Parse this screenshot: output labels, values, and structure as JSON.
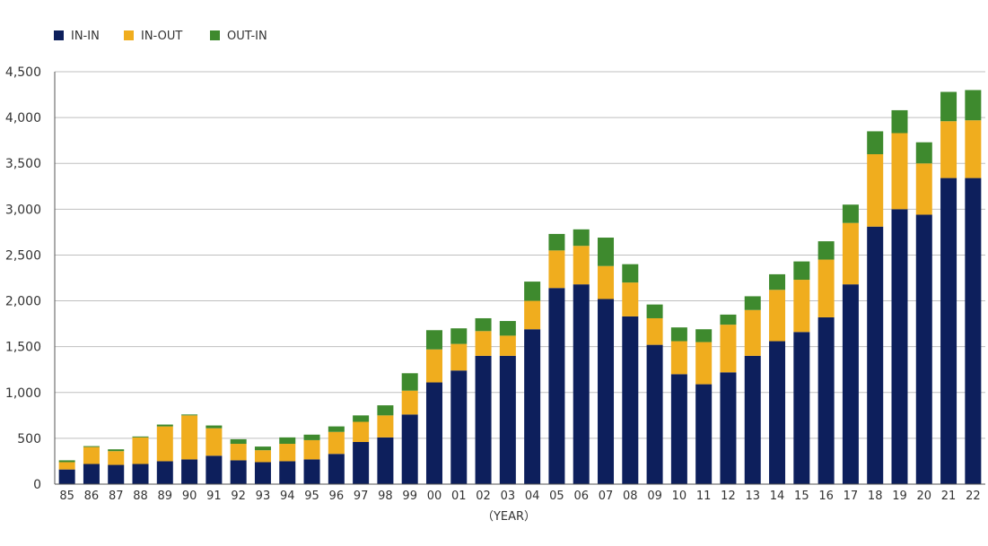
{
  "chart_data": {
    "type": "bar",
    "stacked": true,
    "categories": [
      "85",
      "86",
      "87",
      "88",
      "89",
      "90",
      "91",
      "92",
      "93",
      "94",
      "95",
      "96",
      "97",
      "98",
      "99",
      "00",
      "01",
      "02",
      "03",
      "04",
      "05",
      "06",
      "07",
      "08",
      "09",
      "10",
      "11",
      "12",
      "13",
      "14",
      "15",
      "16",
      "17",
      "18",
      "19",
      "20",
      "21",
      "22"
    ],
    "series": [
      {
        "name": "IN-IN",
        "color": "#0d1f5c",
        "values": [
          160,
          220,
          210,
          220,
          250,
          270,
          310,
          260,
          240,
          250,
          270,
          330,
          460,
          510,
          760,
          1110,
          1240,
          1400,
          1400,
          1690,
          2140,
          2180,
          2020,
          1830,
          1520,
          1200,
          1090,
          1220,
          1400,
          1560,
          1660,
          1820,
          2180,
          2810,
          3000,
          2940,
          3340,
          3340
        ]
      },
      {
        "name": "IN-OUT",
        "color": "#f0ad1e",
        "values": [
          80,
          185,
          150,
          290,
          380,
          480,
          300,
          180,
          130,
          190,
          210,
          240,
          220,
          240,
          260,
          360,
          290,
          270,
          220,
          310,
          410,
          420,
          360,
          370,
          290,
          360,
          460,
          520,
          500,
          560,
          570,
          630,
          670,
          790,
          830,
          560,
          620,
          630
        ]
      },
      {
        "name": "OUT-IN",
        "color": "#3e8a2e",
        "values": [
          20,
          10,
          20,
          10,
          20,
          10,
          30,
          50,
          40,
          70,
          60,
          60,
          70,
          110,
          190,
          210,
          170,
          140,
          160,
          210,
          180,
          180,
          310,
          200,
          150,
          150,
          140,
          110,
          150,
          170,
          200,
          200,
          200,
          250,
          250,
          230,
          320,
          330
        ]
      }
    ],
    "title": "",
    "xlabel": "（YEAR）",
    "ylabel": "",
    "ylim": [
      0,
      4500
    ],
    "yticks": [
      0,
      500,
      1000,
      1500,
      2000,
      2500,
      3000,
      3500,
      4000,
      4500
    ],
    "ytick_labels": [
      "0",
      "500",
      "1,000",
      "1,500",
      "2,000",
      "2,500",
      "3,000",
      "3,500",
      "4,000",
      "4,500"
    ],
    "grid": true,
    "legend_position": "top-left"
  }
}
